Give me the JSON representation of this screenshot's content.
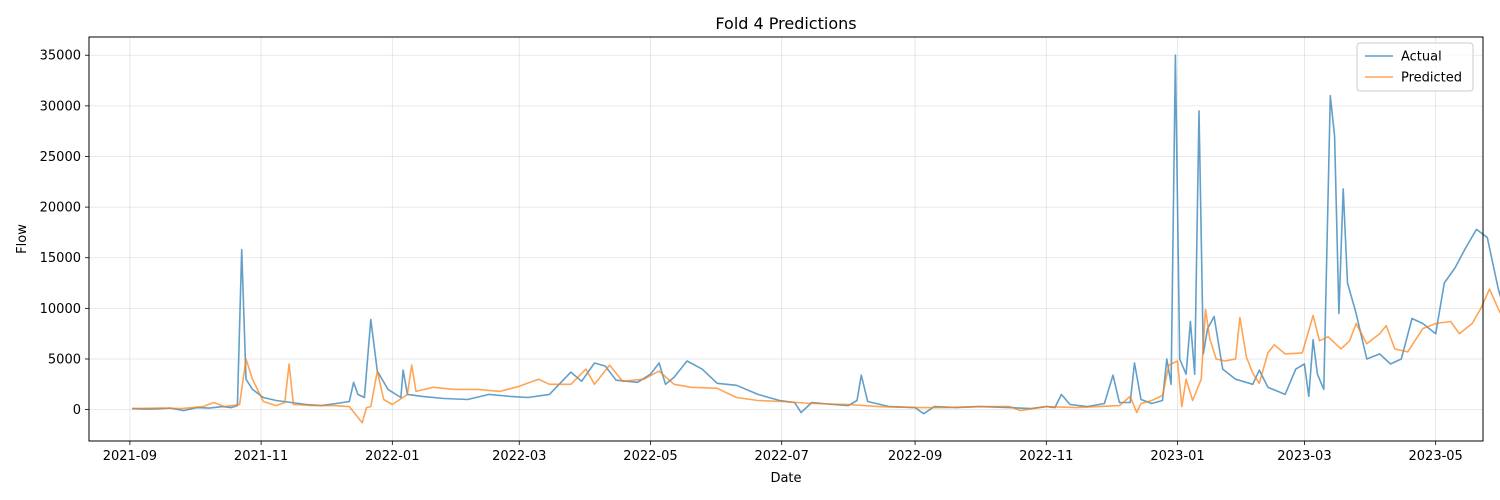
{
  "chart_data": {
    "type": "line",
    "title": "Fold 4 Predictions",
    "xlabel": "Date",
    "ylabel": "Flow",
    "x_range": [
      "2021-08-13",
      "2023-05-23"
    ],
    "ylim": [
      -3100,
      36800
    ],
    "x_ticks": [
      "2021-09",
      "2021-11",
      "2022-01",
      "2022-03",
      "2022-05",
      "2022-07",
      "2022-09",
      "2022-11",
      "2023-01",
      "2023-03",
      "2023-05"
    ],
    "y_ticks": [
      0,
      5000,
      10000,
      15000,
      20000,
      25000,
      30000,
      35000
    ],
    "grid": true,
    "legend_position": "top-right",
    "series": [
      {
        "name": "Actual",
        "color": "#1f77b4",
        "points": [
          [
            "2021-09-02",
            100
          ],
          [
            "2021-09-08",
            50
          ],
          [
            "2021-09-14",
            80
          ],
          [
            "2021-09-20",
            150
          ],
          [
            "2021-09-26",
            -100
          ],
          [
            "2021-10-02",
            200
          ],
          [
            "2021-10-08",
            150
          ],
          [
            "2021-10-14",
            300
          ],
          [
            "2021-10-18",
            200
          ],
          [
            "2021-10-21",
            400
          ],
          [
            "2021-10-23",
            15800
          ],
          [
            "2021-10-25",
            3000
          ],
          [
            "2021-10-28",
            2000
          ],
          [
            "2021-11-02",
            1200
          ],
          [
            "2021-11-08",
            900
          ],
          [
            "2021-11-15",
            700
          ],
          [
            "2021-11-22",
            500
          ],
          [
            "2021-11-29",
            400
          ],
          [
            "2021-12-06",
            600
          ],
          [
            "2021-12-12",
            800
          ],
          [
            "2021-12-14",
            2700
          ],
          [
            "2021-12-16",
            1500
          ],
          [
            "2021-12-19",
            1200
          ],
          [
            "2021-12-22",
            8900
          ],
          [
            "2021-12-25",
            3800
          ],
          [
            "2021-12-30",
            2000
          ],
          [
            "2022-01-05",
            1200
          ],
          [
            "2022-01-06",
            3900
          ],
          [
            "2022-01-08",
            1500
          ],
          [
            "2022-01-15",
            1300
          ],
          [
            "2022-01-25",
            1100
          ],
          [
            "2022-02-05",
            1000
          ],
          [
            "2022-02-15",
            1500
          ],
          [
            "2022-02-25",
            1300
          ],
          [
            "2022-03-05",
            1200
          ],
          [
            "2022-03-15",
            1500
          ],
          [
            "2022-03-25",
            3700
          ],
          [
            "2022-03-30",
            2800
          ],
          [
            "2022-04-05",
            4600
          ],
          [
            "2022-04-10",
            4300
          ],
          [
            "2022-04-15",
            2900
          ],
          [
            "2022-04-25",
            2700
          ],
          [
            "2022-05-01",
            3500
          ],
          [
            "2022-05-05",
            4600
          ],
          [
            "2022-05-08",
            2500
          ],
          [
            "2022-05-12",
            3200
          ],
          [
            "2022-05-18",
            4800
          ],
          [
            "2022-05-25",
            4000
          ],
          [
            "2022-06-01",
            2600
          ],
          [
            "2022-06-10",
            2400
          ],
          [
            "2022-06-20",
            1500
          ],
          [
            "2022-06-30",
            900
          ],
          [
            "2022-07-07",
            700
          ],
          [
            "2022-07-10",
            -300
          ],
          [
            "2022-07-15",
            700
          ],
          [
            "2022-07-25",
            500
          ],
          [
            "2022-08-01",
            400
          ],
          [
            "2022-08-05",
            900
          ],
          [
            "2022-08-07",
            3400
          ],
          [
            "2022-08-10",
            800
          ],
          [
            "2022-08-20",
            300
          ],
          [
            "2022-09-01",
            200
          ],
          [
            "2022-09-05",
            -400
          ],
          [
            "2022-09-10",
            300
          ],
          [
            "2022-09-20",
            200
          ],
          [
            "2022-10-01",
            300
          ],
          [
            "2022-10-15",
            200
          ],
          [
            "2022-10-25",
            100
          ],
          [
            "2022-11-01",
            300
          ],
          [
            "2022-11-05",
            200
          ],
          [
            "2022-11-08",
            1500
          ],
          [
            "2022-11-12",
            500
          ],
          [
            "2022-11-20",
            300
          ],
          [
            "2022-11-28",
            600
          ],
          [
            "2022-12-02",
            3400
          ],
          [
            "2022-12-05",
            700
          ],
          [
            "2022-12-10",
            700
          ],
          [
            "2022-12-12",
            4600
          ],
          [
            "2022-12-15",
            1000
          ],
          [
            "2022-12-20",
            600
          ],
          [
            "2022-12-25",
            900
          ],
          [
            "2022-12-27",
            5000
          ],
          [
            "2022-12-29",
            2500
          ],
          [
            "2022-12-31",
            35000
          ],
          [
            "2023-01-02",
            5000
          ],
          [
            "2023-01-05",
            3500
          ],
          [
            "2023-01-07",
            8700
          ],
          [
            "2023-01-09",
            3500
          ],
          [
            "2023-01-11",
            29500
          ],
          [
            "2023-01-13",
            5500
          ],
          [
            "2023-01-15",
            8000
          ],
          [
            "2023-01-18",
            9200
          ],
          [
            "2023-01-22",
            4000
          ],
          [
            "2023-01-28",
            3000
          ],
          [
            "2023-02-05",
            2500
          ],
          [
            "2023-02-08",
            3900
          ],
          [
            "2023-02-12",
            2200
          ],
          [
            "2023-02-20",
            1500
          ],
          [
            "2023-02-25",
            4000
          ],
          [
            "2023-03-01",
            4500
          ],
          [
            "2023-03-03",
            1300
          ],
          [
            "2023-03-05",
            6900
          ],
          [
            "2023-03-07",
            3500
          ],
          [
            "2023-03-10",
            2000
          ],
          [
            "2023-03-13",
            31000
          ],
          [
            "2023-03-15",
            27000
          ],
          [
            "2023-03-17",
            9500
          ],
          [
            "2023-03-19",
            21800
          ],
          [
            "2023-03-21",
            12500
          ],
          [
            "2023-03-25",
            9500
          ],
          [
            "2023-03-30",
            5000
          ],
          [
            "2023-04-05",
            5500
          ],
          [
            "2023-04-10",
            4500
          ],
          [
            "2023-04-15",
            5000
          ],
          [
            "2023-04-20",
            9000
          ],
          [
            "2023-04-25",
            8500
          ],
          [
            "2023-05-01",
            7500
          ],
          [
            "2023-05-05",
            12500
          ],
          [
            "2023-05-10",
            14000
          ],
          [
            "2023-05-15",
            16000
          ],
          [
            "2023-05-20",
            17800
          ],
          [
            "2023-05-25",
            17000
          ],
          [
            "2023-05-30",
            12000
          ],
          [
            "2023-06-03",
            9000
          ]
        ]
      },
      {
        "name": "Predicted",
        "color": "#ff7f0e",
        "points": [
          [
            "2021-09-02",
            100
          ],
          [
            "2021-09-15",
            150
          ],
          [
            "2021-09-25",
            100
          ],
          [
            "2021-10-05",
            300
          ],
          [
            "2021-10-10",
            700
          ],
          [
            "2021-10-15",
            300
          ],
          [
            "2021-10-22",
            500
          ],
          [
            "2021-10-25",
            5000
          ],
          [
            "2021-10-28",
            3000
          ],
          [
            "2021-11-02",
            800
          ],
          [
            "2021-11-08",
            400
          ],
          [
            "2021-11-12",
            700
          ],
          [
            "2021-11-14",
            4500
          ],
          [
            "2021-11-16",
            500
          ],
          [
            "2021-11-25",
            400
          ],
          [
            "2021-12-05",
            400
          ],
          [
            "2021-12-12",
            300
          ],
          [
            "2021-12-18",
            -1300
          ],
          [
            "2021-12-20",
            200
          ],
          [
            "2021-12-22",
            300
          ],
          [
            "2021-12-25",
            3800
          ],
          [
            "2021-12-28",
            1000
          ],
          [
            "2022-01-01",
            500
          ],
          [
            "2022-01-08",
            1500
          ],
          [
            "2022-01-10",
            4400
          ],
          [
            "2022-01-12",
            1800
          ],
          [
            "2022-01-20",
            2200
          ],
          [
            "2022-01-30",
            2000
          ],
          [
            "2022-02-10",
            2000
          ],
          [
            "2022-02-20",
            1800
          ],
          [
            "2022-03-01",
            2300
          ],
          [
            "2022-03-10",
            3000
          ],
          [
            "2022-03-15",
            2500
          ],
          [
            "2022-03-25",
            2500
          ],
          [
            "2022-04-01",
            4000
          ],
          [
            "2022-04-05",
            2500
          ],
          [
            "2022-04-12",
            4400
          ],
          [
            "2022-04-18",
            2800
          ],
          [
            "2022-04-28",
            3000
          ],
          [
            "2022-05-05",
            3800
          ],
          [
            "2022-05-12",
            2500
          ],
          [
            "2022-05-20",
            2200
          ],
          [
            "2022-06-01",
            2100
          ],
          [
            "2022-06-10",
            1200
          ],
          [
            "2022-06-20",
            900
          ],
          [
            "2022-07-01",
            800
          ],
          [
            "2022-07-15",
            600
          ],
          [
            "2022-08-01",
            500
          ],
          [
            "2022-08-15",
            300
          ],
          [
            "2022-09-01",
            200
          ],
          [
            "2022-09-15",
            200
          ],
          [
            "2022-10-01",
            300
          ],
          [
            "2022-10-15",
            300
          ],
          [
            "2022-10-20",
            -100
          ],
          [
            "2022-11-01",
            300
          ],
          [
            "2022-11-15",
            200
          ],
          [
            "2022-11-25",
            300
          ],
          [
            "2022-12-05",
            400
          ],
          [
            "2022-12-10",
            1300
          ],
          [
            "2022-12-13",
            -300
          ],
          [
            "2022-12-15",
            600
          ],
          [
            "2022-12-20",
            900
          ],
          [
            "2022-12-25",
            1400
          ],
          [
            "2022-12-28",
            4400
          ],
          [
            "2023-01-01",
            4800
          ],
          [
            "2023-01-03",
            300
          ],
          [
            "2023-01-05",
            3000
          ],
          [
            "2023-01-08",
            900
          ],
          [
            "2023-01-12",
            3000
          ],
          [
            "2023-01-14",
            9900
          ],
          [
            "2023-01-16",
            7000
          ],
          [
            "2023-01-19",
            5000
          ],
          [
            "2023-01-23",
            4800
          ],
          [
            "2023-01-28",
            5000
          ],
          [
            "2023-01-30",
            9100
          ],
          [
            "2023-02-02",
            5200
          ],
          [
            "2023-02-05",
            3600
          ],
          [
            "2023-02-08",
            2600
          ],
          [
            "2023-02-12",
            5600
          ],
          [
            "2023-02-15",
            6400
          ],
          [
            "2023-02-20",
            5500
          ],
          [
            "2023-02-28",
            5600
          ],
          [
            "2023-03-05",
            9300
          ],
          [
            "2023-03-08",
            6800
          ],
          [
            "2023-03-12",
            7200
          ],
          [
            "2023-03-18",
            6000
          ],
          [
            "2023-03-22",
            6800
          ],
          [
            "2023-03-25",
            8500
          ],
          [
            "2023-03-30",
            6500
          ],
          [
            "2023-04-05",
            7500
          ],
          [
            "2023-04-08",
            8300
          ],
          [
            "2023-04-12",
            6000
          ],
          [
            "2023-04-18",
            5700
          ],
          [
            "2023-04-25",
            8000
          ],
          [
            "2023-05-01",
            8500
          ],
          [
            "2023-05-08",
            8700
          ],
          [
            "2023-05-12",
            7500
          ],
          [
            "2023-05-18",
            8500
          ],
          [
            "2023-05-22",
            10000
          ],
          [
            "2023-05-26",
            11900
          ],
          [
            "2023-05-30",
            10000
          ],
          [
            "2023-06-03",
            8200
          ]
        ]
      }
    ]
  }
}
